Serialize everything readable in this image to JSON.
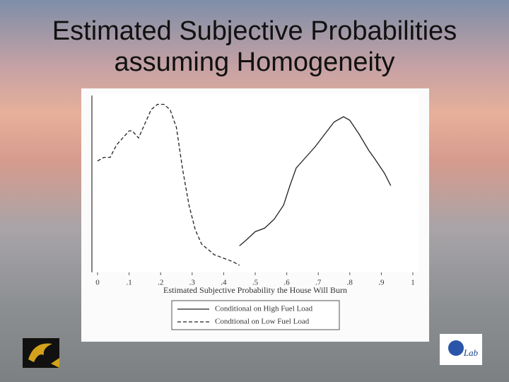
{
  "chart_data": {
    "type": "line",
    "title": "Estimated Subjective Probabilities assuming Homogeneity",
    "x_label": "Estimated Subjective Probability the House Will Burn",
    "xlim": [
      0,
      1
    ],
    "xticks": [
      0,
      {
        "value": 0.1,
        "label": ".1"
      },
      {
        "value": 0.2,
        "label": ".2"
      },
      {
        "value": 0.3,
        "label": ".3"
      },
      {
        "value": 0.4,
        "label": ".4"
      },
      {
        "value": 0.5,
        "label": ".5"
      },
      {
        "value": 0.6,
        "label": ".6"
      },
      {
        "value": 0.7,
        "label": ".7"
      },
      {
        "value": 0.8,
        "label": ".8"
      },
      {
        "value": 0.9,
        "label": ".9"
      },
      1
    ],
    "ylim": [
      0,
      1
    ],
    "series": [
      {
        "name": "Conditional on High Fuel Load",
        "color": "#222222",
        "dash": false,
        "x": [
          0.45,
          0.47,
          0.5,
          0.53,
          0.56,
          0.59,
          0.61,
          0.63,
          0.66,
          0.69,
          0.72,
          0.75,
          0.78,
          0.8,
          0.83,
          0.86,
          0.88,
          0.91,
          0.93
        ],
        "values": [
          0.15,
          0.18,
          0.23,
          0.25,
          0.3,
          0.38,
          0.49,
          0.59,
          0.65,
          0.71,
          0.78,
          0.85,
          0.88,
          0.86,
          0.78,
          0.69,
          0.64,
          0.56,
          0.49
        ]
      },
      {
        "name": "Condtional on Low Fuel Load",
        "color": "#222222",
        "dash": true,
        "x": [
          0,
          0.02,
          0.04,
          0.06,
          0.08,
          0.1,
          0.11,
          0.13,
          0.15,
          0.17,
          0.19,
          0.21,
          0.23,
          0.25,
          0.27,
          0.29,
          0.31,
          0.33,
          0.35,
          0.37,
          0.4,
          0.43,
          0.45
        ],
        "values": [
          0.63,
          0.65,
          0.65,
          0.72,
          0.76,
          0.8,
          0.8,
          0.76,
          0.84,
          0.92,
          0.95,
          0.95,
          0.92,
          0.82,
          0.58,
          0.38,
          0.24,
          0.16,
          0.13,
          0.1,
          0.08,
          0.06,
          0.04
        ]
      }
    ]
  },
  "logo_text": "Lab"
}
